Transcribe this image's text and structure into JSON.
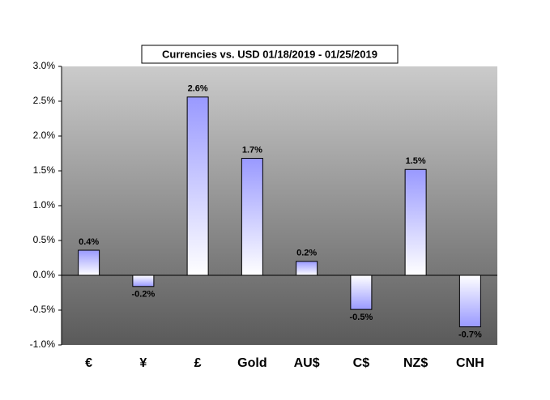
{
  "chart_data": {
    "type": "bar",
    "title": "Currencies vs. USD 01/18/2019 - 01/25/2019",
    "categories": [
      "€",
      "¥",
      "£",
      "Gold",
      "AU$",
      "C$",
      "NZ$",
      "CNH"
    ],
    "values": [
      0.36,
      -0.16,
      2.56,
      1.68,
      0.2,
      -0.49,
      1.52,
      -0.74
    ],
    "value_labels": [
      "0.4%",
      "-0.2%",
      "2.6%",
      "1.7%",
      "0.2%",
      "-0.5%",
      "1.5%",
      "-0.7%"
    ],
    "color": "#9999ff",
    "ylim": [
      -1,
      3
    ],
    "yticks": [
      {
        "value": -1,
        "label": "-1.0%"
      },
      {
        "value": -0.5,
        "label": "-0.5%"
      },
      {
        "value": 0,
        "label": "0.0%"
      },
      {
        "value": 0.5,
        "label": "0.5%"
      },
      {
        "value": 1,
        "label": "1.0%"
      },
      {
        "value": 1.5,
        "label": "1.5%"
      },
      {
        "value": 2,
        "label": "2.0%"
      },
      {
        "value": 2.5,
        "label": "2.5%"
      },
      {
        "value": 3,
        "label": "3.0%"
      }
    ]
  }
}
